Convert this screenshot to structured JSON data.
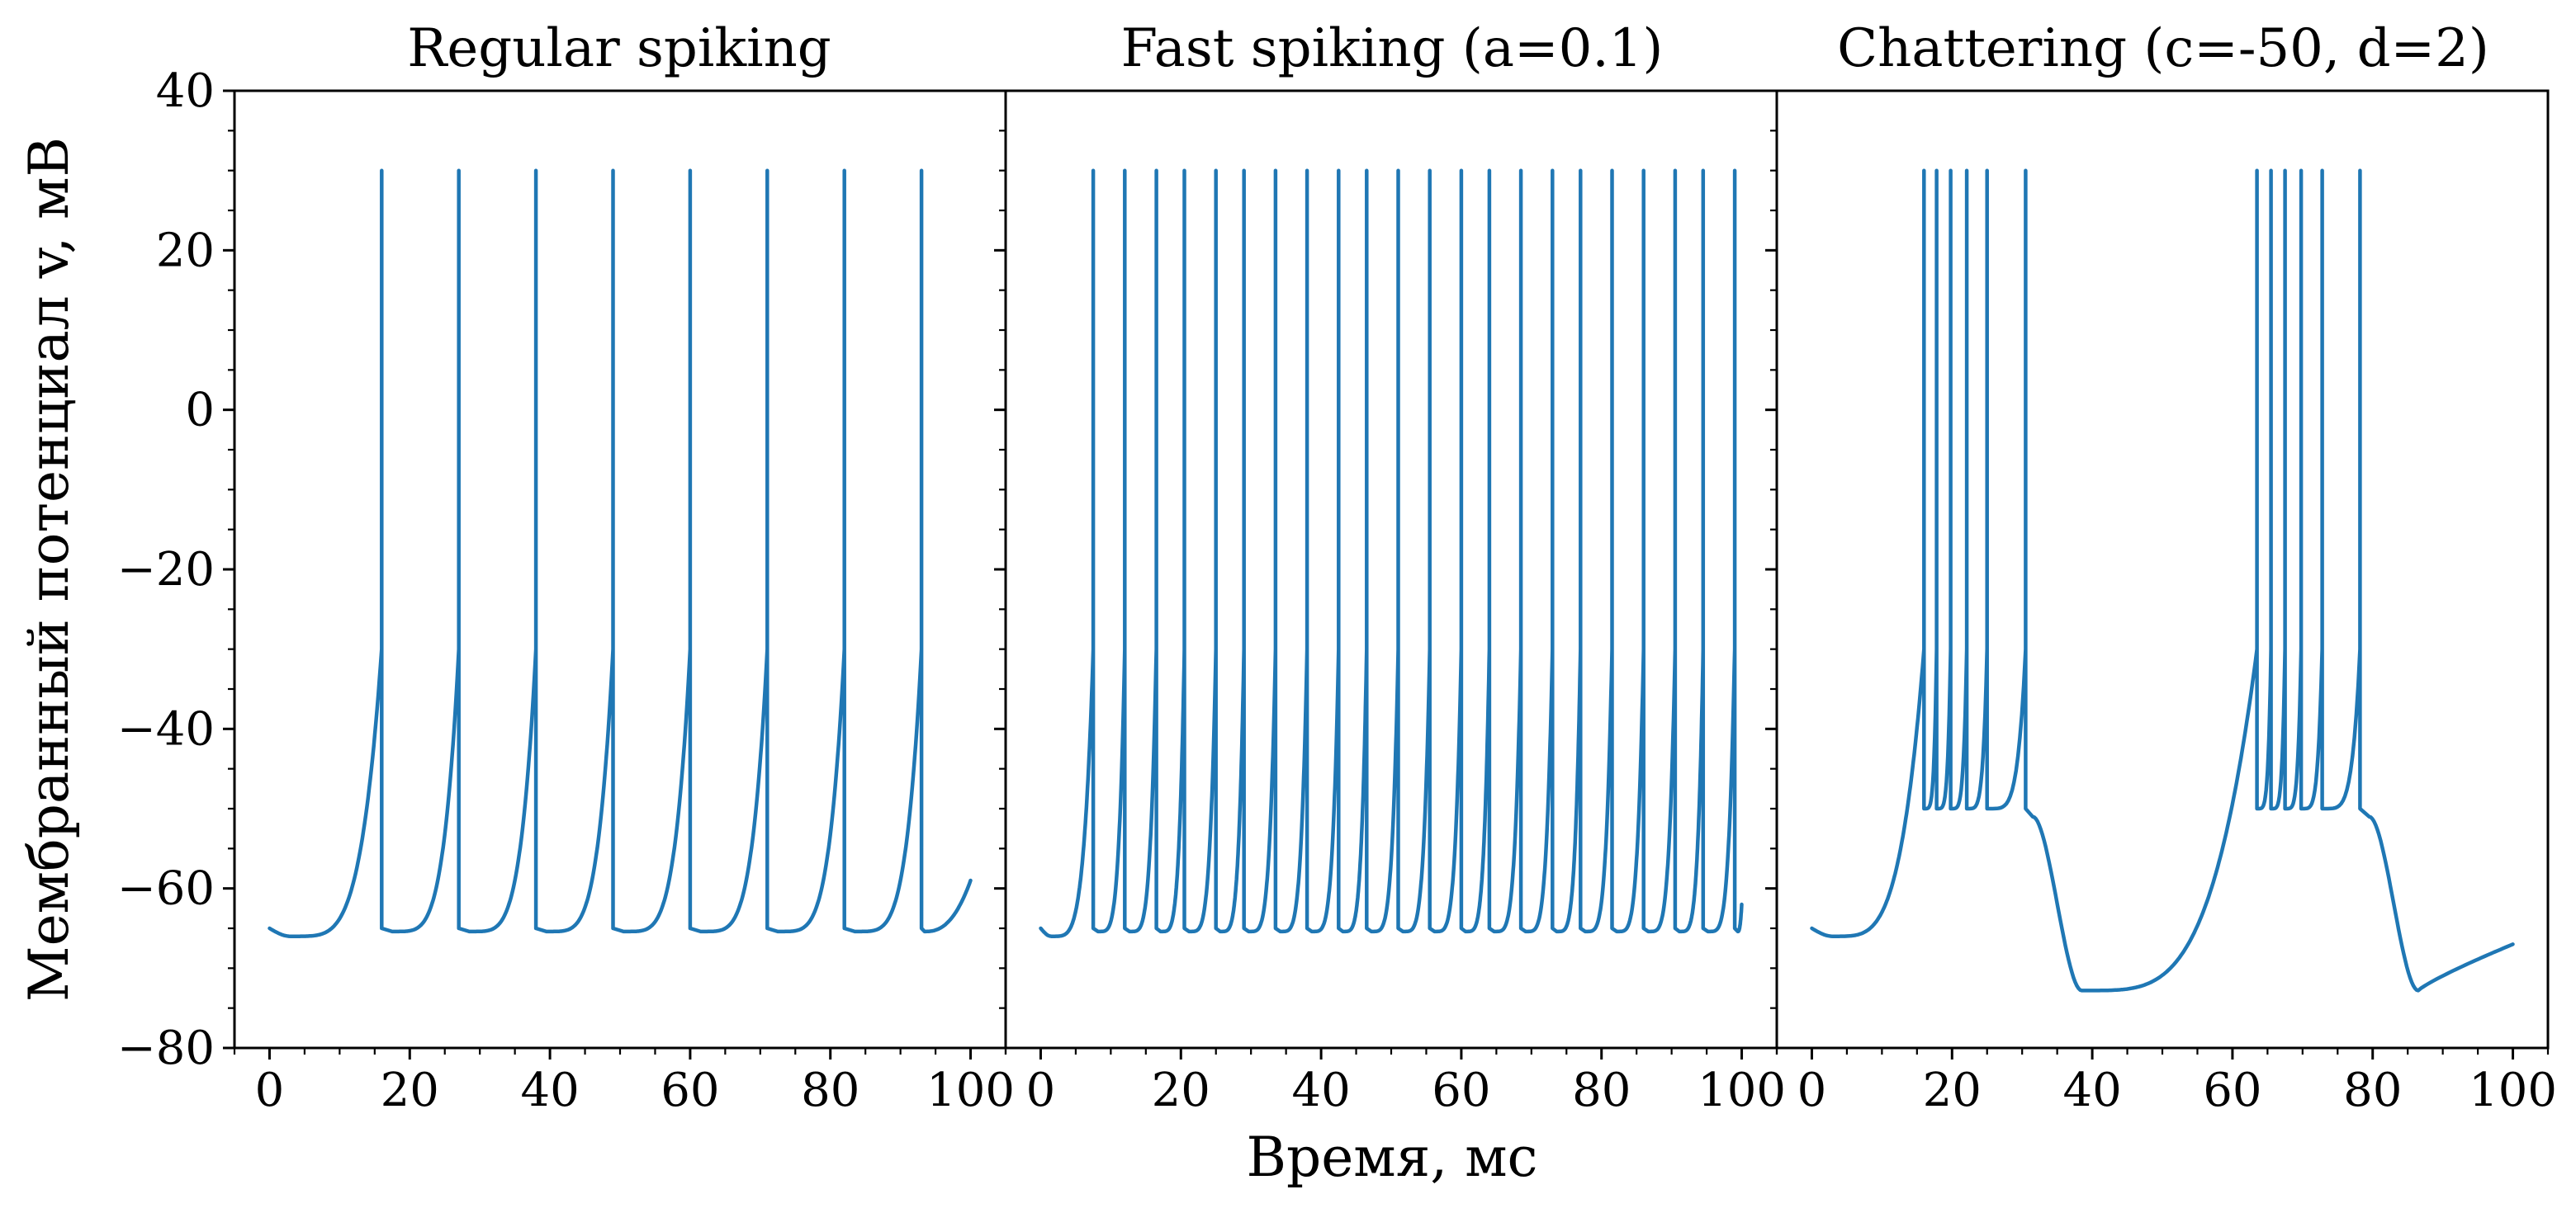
{
  "chart_data": {
    "type": "line",
    "xlabel": "Время, мс",
    "ylabel": "Мембранный потенциал v, мВ",
    "xlim": [
      -5,
      105
    ],
    "ylim": [
      -80,
      40
    ],
    "x_ticks": [
      0,
      20,
      40,
      60,
      80,
      100
    ],
    "y_ticks": [
      -80,
      -60,
      -40,
      -20,
      0,
      20,
      40
    ],
    "y_minor_step": 5,
    "x_minor_step": 5,
    "grid": false,
    "line_color": "#1f77b4",
    "panels": [
      {
        "title": "Regular spiking",
        "v_reset": -65,
        "v_start": -65,
        "v_min": -66,
        "t_min": 3,
        "v_peak": 30,
        "spike_times": [
          16,
          27,
          38,
          49,
          60,
          71,
          82,
          93
        ],
        "v_end": -59
      },
      {
        "title": "Fast spiking (a=0.1)",
        "v_reset": -65,
        "v_start": -65,
        "v_min": -66,
        "t_min": 1.5,
        "v_peak": 30,
        "spike_times": [
          7.5,
          12,
          16.5,
          20.5,
          25,
          29,
          33.5,
          38,
          42.5,
          46.5,
          51,
          55.5,
          60,
          64,
          68.5,
          73,
          77,
          81.5,
          86,
          90.5,
          94.5,
          99
        ],
        "v_end": -62
      },
      {
        "title": "Chattering (c=-50, d=2)",
        "v_peak": 30,
        "bursts": [
          {
            "spike_times": [
              16,
              17.8,
              19.8,
              22.1,
              25,
              30.5
            ],
            "plateau_end": 31.5,
            "trough_t": 38.5,
            "trough_v": -72.8
          },
          {
            "spike_times": [
              63.5,
              65.5,
              67.5,
              69.8,
              72.8,
              78.2
            ],
            "plateau_end": 79.5,
            "trough_t": 86.5,
            "trough_v": -72.8
          }
        ],
        "v_reset": -50,
        "v_start": -65,
        "v_min": -66,
        "t_min": 3,
        "v_end": -67
      }
    ]
  }
}
